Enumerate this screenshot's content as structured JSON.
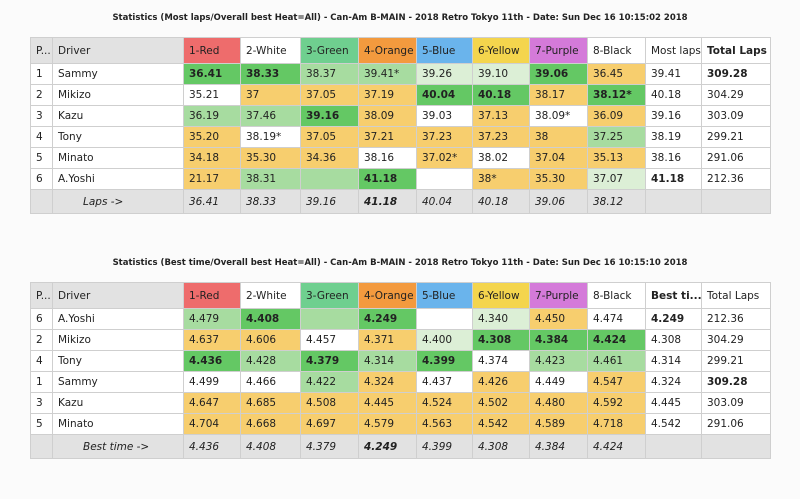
{
  "tables": [
    {
      "title": "Statistics (Most laps/Overall best Heat=All) - Can-Am B-MAIN - 2018 Retro Tokyo 11th - Date: Sun Dec 16 10:15:02 2018",
      "headers": [
        "P...",
        "Driver",
        "1-Red",
        "2-White",
        "3-Green",
        "4-Orange",
        "5-Blue",
        "6-Yellow",
        "7-Purple",
        "8-Black",
        "Most laps",
        "Total Laps"
      ],
      "header_styles": [
        "gray",
        "gray",
        "h-red",
        "h-white",
        "h-green",
        "h-orange",
        "h-blue",
        "h-yellow",
        "h-purple",
        "h-black",
        "h-plain",
        "h-plain b"
      ],
      "rows": [
        {
          "cells": [
            "1",
            "Sammy",
            "36.41",
            "38.33",
            "38.37",
            "39.41*",
            "39.26",
            "39.10",
            "39.06",
            "36.45",
            "39.41",
            "309.28"
          ],
          "styles": [
            "w",
            "w",
            "g b",
            "g b",
            "lg",
            "lg",
            "vlg",
            "vlg",
            "g b",
            "y",
            "w",
            "w b"
          ]
        },
        {
          "cells": [
            "2",
            "Mikizo",
            "35.21",
            "37",
            "37.05",
            "37.19",
            "40.04",
            "40.18",
            "38.17",
            "38.12*",
            "40.18",
            "304.29"
          ],
          "styles": [
            "w",
            "w",
            "w",
            "y",
            "y",
            "y",
            "g b",
            "g b",
            "y",
            "g b",
            "w",
            "w"
          ]
        },
        {
          "cells": [
            "3",
            "Kazu",
            "36.19",
            "37.46",
            "39.16",
            "38.09",
            "39.03",
            "37.13",
            "38.09*",
            "36.09",
            "39.16",
            "303.09"
          ],
          "styles": [
            "w",
            "w",
            "lg",
            "lg",
            "g b",
            "y",
            "w",
            "y",
            "w",
            "y",
            "w",
            "w"
          ]
        },
        {
          "cells": [
            "4",
            "Tony",
            "35.20",
            "38.19*",
            "37.05",
            "37.21",
            "37.23",
            "37.23",
            "38",
            "37.25",
            "38.19",
            "299.21"
          ],
          "styles": [
            "w",
            "w",
            "y",
            "w",
            "y",
            "y",
            "y",
            "y",
            "y",
            "lg",
            "w",
            "w"
          ]
        },
        {
          "cells": [
            "5",
            "Minato",
            "34.18",
            "35.30",
            "34.36",
            "38.16",
            "37.02*",
            "38.02",
            "37.04",
            "35.13",
            "38.16",
            "291.06"
          ],
          "styles": [
            "w",
            "w",
            "y",
            "y",
            "y",
            "w",
            "y",
            "w",
            "y",
            "y",
            "w",
            "w"
          ]
        },
        {
          "cells": [
            "6",
            "A.Yoshi",
            "21.17",
            "38.31",
            "",
            "41.18",
            "",
            "38*",
            "35.30",
            "37.07",
            "41.18",
            "212.36"
          ],
          "styles": [
            "w",
            "w",
            "y",
            "lg",
            "lg",
            "g b",
            "w",
            "y",
            "y",
            "vlg",
            "w b",
            "w"
          ]
        }
      ],
      "footer": {
        "cells": [
          "",
          "Laps ->",
          "36.41",
          "38.33",
          "39.16",
          "41.18",
          "40.04",
          "40.18",
          "39.06",
          "38.12",
          "",
          ""
        ],
        "styles": [
          "gray",
          "gray",
          "gray",
          "gray",
          "gray",
          "gray b",
          "gray",
          "gray",
          "gray",
          "gray",
          "w",
          "w"
        ]
      }
    },
    {
      "title": "Statistics (Best time/Overall best Heat=All) - Can-Am B-MAIN - 2018 Retro Tokyo 11th - Date: Sun Dec 16 10:15:10 2018",
      "headers": [
        "P...",
        "Driver",
        "1-Red",
        "2-White",
        "3-Green",
        "4-Orange",
        "5-Blue",
        "6-Yellow",
        "7-Purple",
        "8-Black",
        "Best ti...",
        "Total Laps"
      ],
      "header_styles": [
        "gray",
        "gray",
        "h-red",
        "h-white",
        "h-green",
        "h-orange",
        "h-blue",
        "h-yellow",
        "h-purple",
        "h-black",
        "h-plain b",
        "h-plain"
      ],
      "rows": [
        {
          "cells": [
            "6",
            "A.Yoshi",
            "4.479",
            "4.408",
            "",
            "4.249",
            "",
            "4.340",
            "4.450",
            "4.474",
            "4.249",
            "212.36"
          ],
          "styles": [
            "w",
            "w",
            "lg",
            "g b",
            "lg",
            "g b",
            "w",
            "vlg",
            "y",
            "w",
            "w b",
            "w"
          ]
        },
        {
          "cells": [
            "2",
            "Mikizo",
            "4.637",
            "4.606",
            "4.457",
            "4.371",
            "4.400",
            "4.308",
            "4.384",
            "4.424",
            "4.308",
            "304.29"
          ],
          "styles": [
            "w",
            "w",
            "y",
            "y",
            "w",
            "y",
            "vlg",
            "g b",
            "g b",
            "g b",
            "w",
            "w"
          ]
        },
        {
          "cells": [
            "4",
            "Tony",
            "4.436",
            "4.428",
            "4.379",
            "4.314",
            "4.399",
            "4.374",
            "4.423",
            "4.461",
            "4.314",
            "299.21"
          ],
          "styles": [
            "w",
            "w",
            "g b",
            "lg",
            "g b",
            "lg",
            "g b",
            "w",
            "lg",
            "lg",
            "w",
            "w"
          ]
        },
        {
          "cells": [
            "1",
            "Sammy",
            "4.499",
            "4.466",
            "4.422",
            "4.324",
            "4.437",
            "4.426",
            "4.449",
            "4.547",
            "4.324",
            "309.28"
          ],
          "styles": [
            "w",
            "w",
            "w",
            "w",
            "lg",
            "y",
            "w",
            "y",
            "w",
            "y",
            "w",
            "w b"
          ]
        },
        {
          "cells": [
            "3",
            "Kazu",
            "4.647",
            "4.685",
            "4.508",
            "4.445",
            "4.524",
            "4.502",
            "4.480",
            "4.592",
            "4.445",
            "303.09"
          ],
          "styles": [
            "w",
            "w",
            "y",
            "y",
            "y",
            "y",
            "y",
            "y",
            "y",
            "y",
            "w",
            "w"
          ]
        },
        {
          "cells": [
            "5",
            "Minato",
            "4.704",
            "4.668",
            "4.697",
            "4.579",
            "4.563",
            "4.542",
            "4.589",
            "4.718",
            "4.542",
            "291.06"
          ],
          "styles": [
            "w",
            "w",
            "y",
            "y",
            "y",
            "y",
            "y",
            "y",
            "y",
            "y",
            "w",
            "w"
          ]
        }
      ],
      "footer": {
        "cells": [
          "",
          "Best time ->",
          "4.436",
          "4.408",
          "4.379",
          "4.249",
          "4.399",
          "4.308",
          "4.384",
          "4.424",
          "",
          ""
        ],
        "styles": [
          "gray",
          "gray",
          "gray",
          "gray",
          "gray",
          "gray b",
          "gray",
          "gray",
          "gray",
          "gray",
          "w",
          "w"
        ]
      }
    }
  ]
}
